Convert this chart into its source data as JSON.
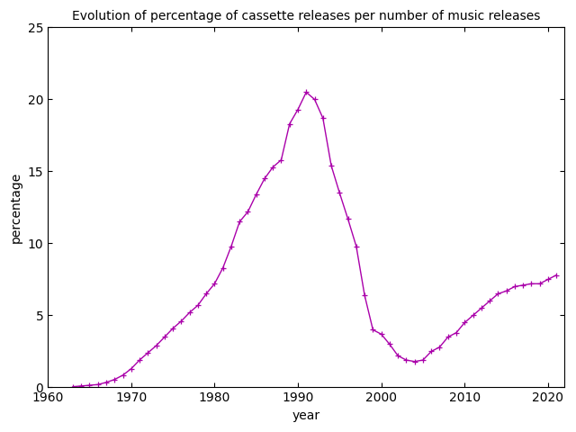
{
  "title": "Evolution of percentage of cassette releases per number of music releases",
  "xlabel": "year",
  "ylabel": "percentage",
  "xlim": [
    1960,
    2022
  ],
  "ylim": [
    0,
    25
  ],
  "xticks": [
    1960,
    1970,
    1980,
    1990,
    2000,
    2010,
    2020
  ],
  "yticks": [
    0,
    5,
    10,
    15,
    20,
    25
  ],
  "line_color": "#AA00AA",
  "marker": "+",
  "markersize": 5,
  "linewidth": 1.0,
  "years": [
    1963,
    1964,
    1965,
    1966,
    1967,
    1968,
    1969,
    1970,
    1971,
    1972,
    1973,
    1974,
    1975,
    1976,
    1977,
    1978,
    1979,
    1980,
    1981,
    1982,
    1983,
    1984,
    1985,
    1986,
    1987,
    1988,
    1989,
    1990,
    1991,
    1992,
    1993,
    1994,
    1995,
    1996,
    1997,
    1998,
    1999,
    2000,
    2001,
    2002,
    2003,
    2004,
    2005,
    2006,
    2007,
    2008,
    2009,
    2010,
    2011,
    2012,
    2013,
    2014,
    2015,
    2016,
    2017,
    2018,
    2019,
    2020,
    2021
  ],
  "values": [
    0.05,
    0.1,
    0.15,
    0.2,
    0.35,
    0.55,
    0.85,
    1.3,
    1.9,
    2.4,
    2.9,
    3.5,
    4.1,
    4.6,
    5.2,
    5.7,
    6.5,
    7.2,
    8.3,
    9.8,
    11.5,
    12.2,
    13.4,
    14.5,
    15.3,
    15.8,
    18.3,
    19.3,
    20.5,
    20.0,
    18.7,
    15.4,
    13.5,
    11.7,
    9.8,
    6.4,
    4.0,
    3.7,
    3.0,
    2.2,
    1.9,
    1.8,
    1.9,
    2.5,
    2.8,
    3.5,
    3.8,
    4.5,
    5.0,
    5.5,
    6.0,
    6.5,
    6.7,
    7.0,
    7.1,
    7.2,
    7.2,
    7.5,
    7.8
  ]
}
